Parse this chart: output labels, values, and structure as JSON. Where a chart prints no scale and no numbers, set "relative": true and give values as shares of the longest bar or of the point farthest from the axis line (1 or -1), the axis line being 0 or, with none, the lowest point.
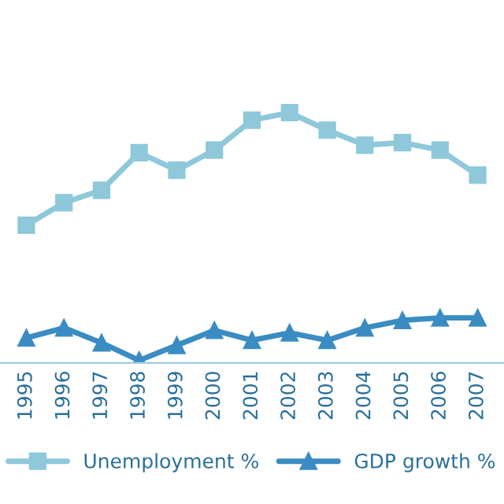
{
  "chart_data": {
    "type": "line",
    "relative": true,
    "categories": [
      "1995",
      "1996",
      "1997",
      "1998",
      "1999",
      "2000",
      "2001",
      "2002",
      "2003",
      "2004",
      "2005",
      "2006",
      "2007"
    ],
    "series": [
      {
        "name": "Unemployment %",
        "color": "#8ec8da",
        "marker": "square",
        "values": [
          0.55,
          0.64,
          0.69,
          0.84,
          0.77,
          0.85,
          0.97,
          1.0,
          0.93,
          0.87,
          0.88,
          0.85,
          0.75
        ]
      },
      {
        "name": "GDP growth %",
        "color": "#3a8cc2",
        "marker": "triangle",
        "values": [
          0.1,
          0.14,
          0.08,
          0.01,
          0.07,
          0.13,
          0.09,
          0.12,
          0.09,
          0.14,
          0.17,
          0.18,
          0.18
        ]
      }
    ],
    "legend": "bottom",
    "grid": false
  }
}
